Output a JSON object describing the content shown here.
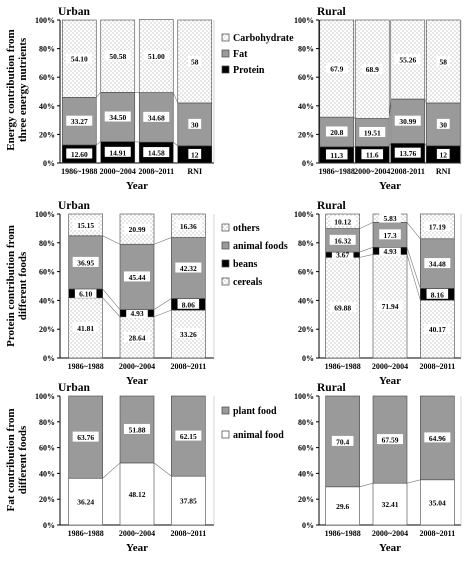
{
  "chart_data": [
    {
      "id": "energy-urban",
      "type": "bar",
      "stacked": true,
      "title": "Urban",
      "xlabel": "Year",
      "ylabel": "Energy contribution from three energy nutrients",
      "ylim": [
        0,
        100
      ],
      "yticks": [
        "0%",
        "20%",
        "40%",
        "60%",
        "80%",
        "100%"
      ],
      "categories": [
        "1986~1988",
        "2000~2004",
        "2008~2011",
        "RNI"
      ],
      "series": [
        {
          "name": "Protein",
          "values": [
            12.6,
            14.91,
            14.58,
            12
          ],
          "labels": [
            "12.60",
            "14.91",
            "14.58",
            "12"
          ]
        },
        {
          "name": "Fat",
          "values": [
            33.27,
            34.5,
            34.68,
            30
          ],
          "labels": [
            "33.27",
            "34.50",
            "34.68",
            "30"
          ]
        },
        {
          "name": "Carbohydrate",
          "values": [
            54.1,
            50.58,
            51.0,
            58
          ],
          "labels": [
            "54.10",
            "50.58",
            "51.00",
            "58"
          ]
        }
      ],
      "legend": [
        "Carbohydrate",
        "Fat",
        "Protein"
      ]
    },
    {
      "id": "energy-rural",
      "type": "bar",
      "stacked": true,
      "title": "Rural",
      "xlabel": "Year",
      "ylim": [
        0,
        100
      ],
      "yticks": [
        "0%",
        "20%",
        "40%",
        "60%",
        "80%",
        "100%"
      ],
      "categories": [
        "1986~1988",
        "2000~2004",
        "2008-2011",
        "RNI"
      ],
      "series": [
        {
          "name": "Protein",
          "values": [
            11.3,
            11.6,
            13.76,
            12
          ],
          "labels": [
            "11.3",
            "11.6",
            "13.76",
            "12"
          ]
        },
        {
          "name": "Fat",
          "values": [
            20.8,
            19.51,
            30.99,
            30
          ],
          "labels": [
            "20.8",
            "19.51",
            "30.99",
            "30"
          ]
        },
        {
          "name": "Carbohydrate",
          "values": [
            67.9,
            68.9,
            55.26,
            58
          ],
          "labels": [
            "67.9",
            "68.9",
            "55.26",
            "58"
          ]
        }
      ]
    },
    {
      "id": "protein-urban",
      "type": "bar",
      "stacked": true,
      "title": "Urban",
      "xlabel": "Year",
      "ylabel": "Protein contribution from different foods",
      "ylim": [
        0,
        100
      ],
      "yticks": [
        "0%",
        "20%",
        "40%",
        "60%",
        "80%",
        "100%"
      ],
      "categories": [
        "1986~1988",
        "2000~2004",
        "2008~2011"
      ],
      "series": [
        {
          "name": "cereals",
          "values": [
            41.81,
            28.64,
            33.26
          ],
          "labels": [
            "41.81",
            "28.64",
            "33.26"
          ]
        },
        {
          "name": "beans",
          "values": [
            6.1,
            4.93,
            8.06
          ],
          "labels": [
            "6.10",
            "4.93",
            "8.06"
          ]
        },
        {
          "name": "animal foods",
          "values": [
            36.95,
            45.44,
            42.32
          ],
          "labels": [
            "36.95",
            "45.44",
            "42.32"
          ]
        },
        {
          "name": "others",
          "values": [
            15.15,
            20.99,
            16.36
          ],
          "labels": [
            "15.15",
            "20.99",
            "16.36"
          ]
        }
      ],
      "legend": [
        "others",
        "animal foods",
        "beans",
        "cereals"
      ]
    },
    {
      "id": "protein-rural",
      "type": "bar",
      "stacked": true,
      "title": "Rural",
      "xlabel": "Year",
      "ylim": [
        0,
        100
      ],
      "yticks": [
        "0%",
        "20%",
        "40%",
        "60%",
        "80%",
        "100%"
      ],
      "categories": [
        "1986~1988",
        "2000~2004",
        "2008~2011"
      ],
      "series": [
        {
          "name": "cereals",
          "values": [
            69.88,
            71.94,
            40.17
          ],
          "labels": [
            "69.88",
            "71.94",
            "40.17"
          ]
        },
        {
          "name": "beans",
          "values": [
            3.67,
            4.93,
            8.16
          ],
          "labels": [
            "3.67",
            "4.93",
            "8.16"
          ]
        },
        {
          "name": "animal foods",
          "values": [
            16.32,
            17.3,
            34.48
          ],
          "labels": [
            "16.32",
            "17.3",
            "34.48"
          ]
        },
        {
          "name": "others",
          "values": [
            10.12,
            5.83,
            17.19
          ],
          "labels": [
            "10.12",
            "5.83",
            "17.19"
          ]
        }
      ]
    },
    {
      "id": "fat-urban",
      "type": "bar",
      "stacked": true,
      "title": "Urban",
      "xlabel": "Year",
      "ylabel": "Fat contribution from different foods",
      "ylim": [
        0,
        100
      ],
      "yticks": [
        "0%",
        "20%",
        "40%",
        "60%",
        "80%",
        "100%"
      ],
      "categories": [
        "1986~1988",
        "2000~2004",
        "2008~2011"
      ],
      "series": [
        {
          "name": "animal food",
          "values": [
            36.24,
            48.12,
            37.85
          ],
          "labels": [
            "36.24",
            "48.12",
            "37.85"
          ]
        },
        {
          "name": "plant food",
          "values": [
            63.76,
            51.88,
            62.15
          ],
          "labels": [
            "63.76",
            "51.88",
            "62.15"
          ]
        }
      ],
      "legend": [
        "plant food",
        "animal food"
      ]
    },
    {
      "id": "fat-rural",
      "type": "bar",
      "stacked": true,
      "title": "Rural",
      "xlabel": "Year",
      "ylim": [
        0,
        100
      ],
      "yticks": [
        "0%",
        "20%",
        "40%",
        "60%",
        "80%",
        "100%"
      ],
      "categories": [
        "1986~1988",
        "2000~2004",
        "2008~2011"
      ],
      "series": [
        {
          "name": "animal food",
          "values": [
            29.6,
            32.41,
            35.04
          ],
          "labels": [
            "29.6",
            "32.41",
            "35.04"
          ]
        },
        {
          "name": "plant food",
          "values": [
            70.4,
            67.59,
            64.96
          ],
          "labels": [
            "70.4",
            "67.59",
            "64.96"
          ]
        }
      ]
    }
  ],
  "colors": {
    "Protein": "#000000",
    "Fat": "#9a9a9a",
    "Carbohydrate": "#f4f4f4",
    "cereals": "#f4f4f4",
    "beans": "#000000",
    "animal foods": "#9a9a9a",
    "others": "#ffffff",
    "animal food": "#ffffff",
    "plant food": "#9a9a9a"
  },
  "patterns": {
    "Carbohydrate": "dots",
    "cereals": "dots",
    "others": "dots"
  }
}
